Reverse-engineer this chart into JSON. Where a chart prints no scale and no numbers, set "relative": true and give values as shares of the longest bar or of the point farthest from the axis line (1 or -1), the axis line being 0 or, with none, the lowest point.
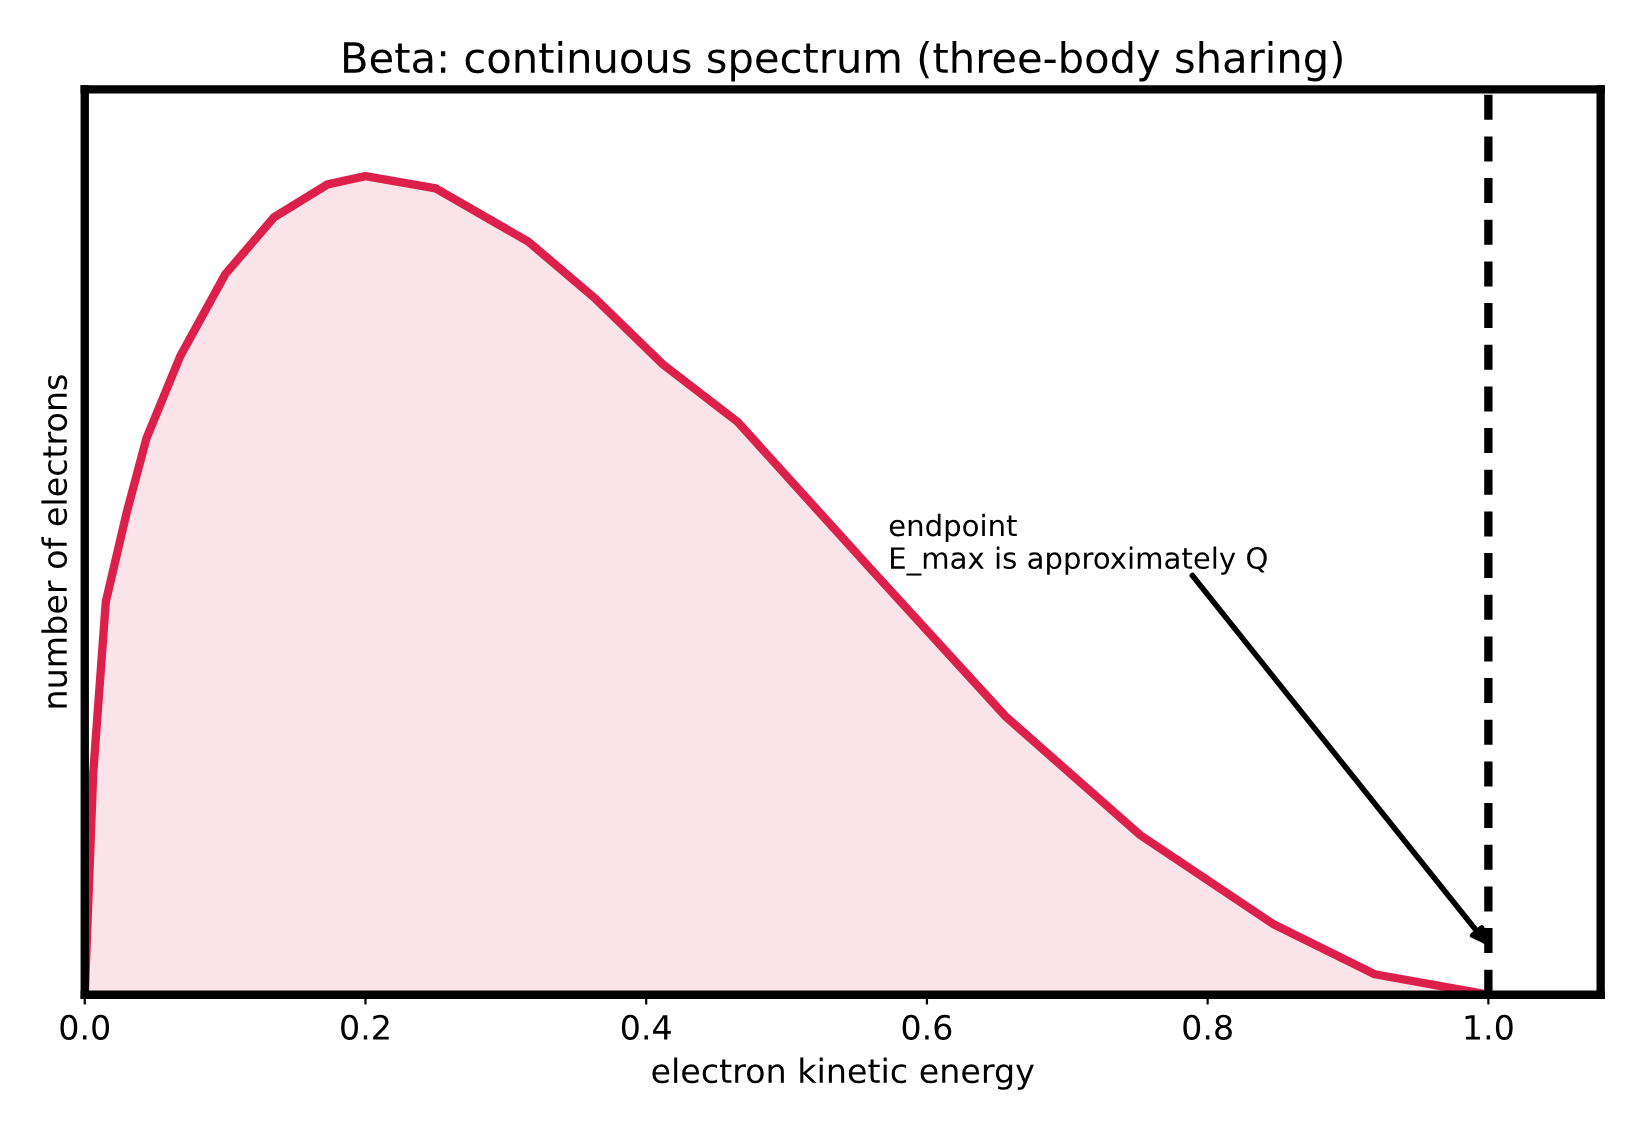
{
  "chart_data": {
    "type": "area",
    "title": "Beta: continuous spectrum (three-body sharing)",
    "xlabel": "electron kinetic energy",
    "ylabel": "number of electrons",
    "relative": true,
    "x": [
      0,
      0.006,
      0.015,
      0.03,
      0.044,
      0.068,
      0.1,
      0.135,
      0.173,
      0.2,
      0.25,
      0.316,
      0.364,
      0.412,
      0.465,
      0.56,
      0.656,
      0.752,
      0.847,
      0.919,
      1.0
    ],
    "series": [
      {
        "color": "#dc1f4b",
        "values": [
          0,
          0.27,
          0.48,
          0.59,
          0.68,
          0.78,
          0.88,
          0.95,
          0.99,
          1,
          0.985,
          0.92,
          0.85,
          0.77,
          0.7,
          0.52,
          0.34,
          0.195,
          0.086,
          0.025,
          0
        ]
      }
    ],
    "xlim": [
      0,
      1.08
    ],
    "xticks": [
      {
        "value": 0,
        "label": "0.0"
      },
      0.2,
      0.4,
      0.6,
      0.8,
      {
        "value": 1,
        "label": "1.0"
      }
    ],
    "tick_labels": "x",
    "grid": false,
    "legend": false,
    "ref_lines": [
      {
        "axis": "x",
        "value": 1,
        "color": "#000000",
        "line_style": "dashed"
      }
    ],
    "annotations": [
      {
        "text": "endpoint\nE_max is approximately Q",
        "x": 1,
        "y": 0.06
      }
    ]
  }
}
